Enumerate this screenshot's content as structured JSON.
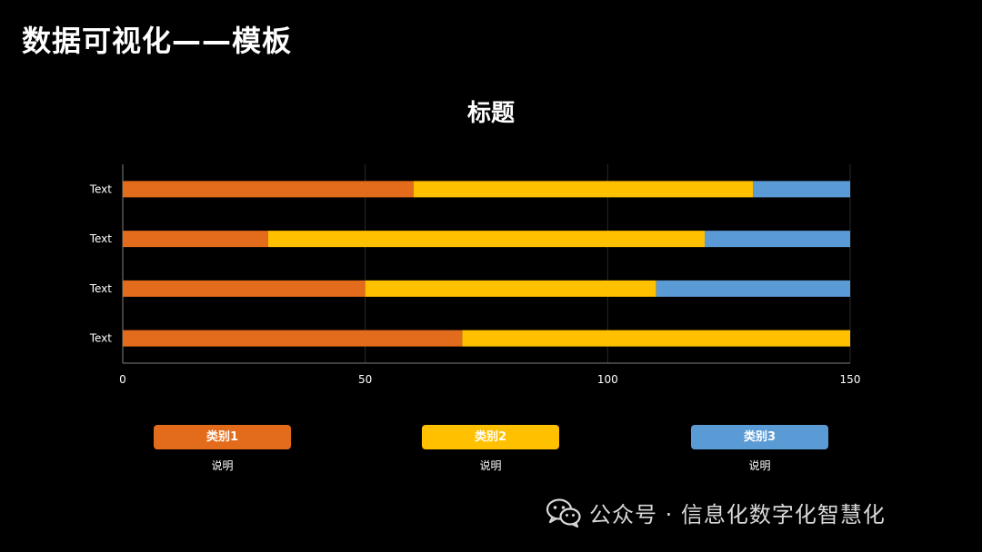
{
  "page": {
    "title": "数据可视化——模板",
    "watermark": "公众号 · 信息化数字化智慧化",
    "watermark_icon": "wechat-icon"
  },
  "chart_data": {
    "type": "bar",
    "orientation": "horizontal",
    "stacked": true,
    "title": "标题",
    "categories": [
      "Text",
      "Text",
      "Text",
      "Text"
    ],
    "series": [
      {
        "name": "类别1",
        "color": "#E36C1C",
        "values": [
          70,
          50,
          30,
          60
        ]
      },
      {
        "name": "类别2",
        "color": "#FFC000",
        "values": [
          80,
          60,
          90,
          70
        ]
      },
      {
        "name": "类别3",
        "color": "#5B9BD5",
        "values": [
          0,
          40,
          30,
          20
        ]
      }
    ],
    "xlim": [
      0,
      150
    ],
    "xticks": [
      0,
      50,
      100,
      150
    ],
    "grid": true,
    "legend_position": "bottom"
  },
  "legend": [
    {
      "label": "类别1",
      "note": "说明",
      "color": "#E36C1C"
    },
    {
      "label": "类别2",
      "note": "说明",
      "color": "#FFC000"
    },
    {
      "label": "类别3",
      "note": "说明",
      "color": "#5B9BD5"
    }
  ]
}
